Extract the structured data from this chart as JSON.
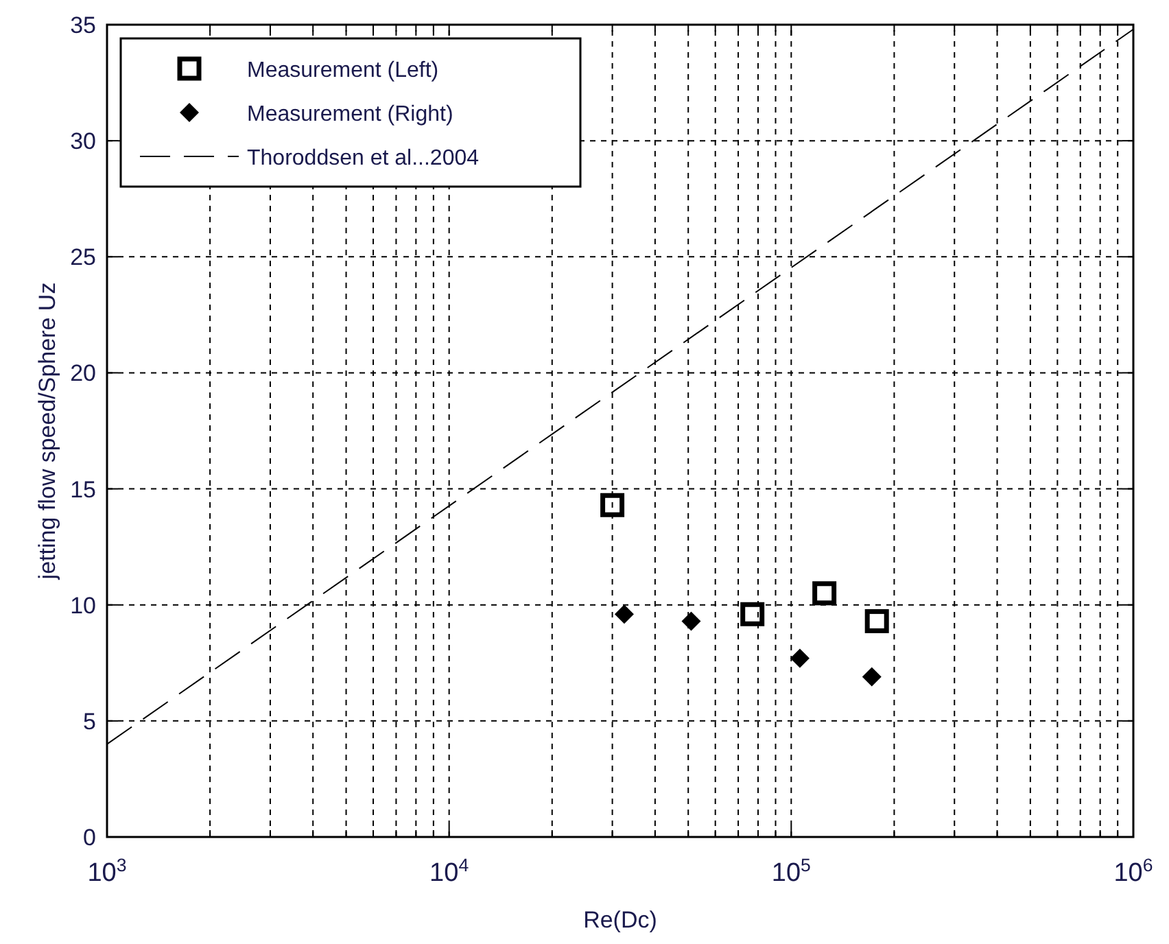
{
  "chart_data": {
    "type": "scatter",
    "xlabel": "Re(Dc)",
    "ylabel": "jetting flow speed/Sphere Uz",
    "log": "x",
    "grid": true,
    "legend": "top left",
    "xlim": [
      1000,
      1000000
    ],
    "ylim": [
      0,
      35
    ],
    "xticks": [
      {
        "value": 1000,
        "label": "10$^{3}$"
      },
      {
        "value": 2000,
        "label": null
      },
      {
        "value": 3000,
        "label": null
      },
      {
        "value": 4000,
        "label": null
      },
      {
        "value": 5000,
        "label": null
      },
      {
        "value": 6000,
        "label": null
      },
      {
        "value": 7000,
        "label": null
      },
      {
        "value": 8000,
        "label": null
      },
      {
        "value": 9000,
        "label": null
      },
      {
        "value": 10000,
        "label": "10$^{4}$"
      },
      {
        "value": 20000,
        "label": null
      },
      {
        "value": 30000,
        "label": null
      },
      {
        "value": 40000,
        "label": null
      },
      {
        "value": 50000,
        "label": null
      },
      {
        "value": 60000,
        "label": null
      },
      {
        "value": 70000,
        "label": null
      },
      {
        "value": 80000,
        "label": null
      },
      {
        "value": 90000,
        "label": null
      },
      {
        "value": 100000,
        "label": "10$^{5}$"
      },
      {
        "value": 200000,
        "label": null
      },
      {
        "value": 300000,
        "label": null
      },
      {
        "value": 400000,
        "label": null
      },
      {
        "value": 500000,
        "label": null
      },
      {
        "value": 600000,
        "label": null
      },
      {
        "value": 700000,
        "label": null
      },
      {
        "value": 800000,
        "label": null
      },
      {
        "value": 900000,
        "label": null
      },
      {
        "value": 1000000,
        "label": "10$^{6}$"
      }
    ],
    "yticks": [
      0,
      5,
      10,
      15,
      20,
      25,
      30,
      35
    ],
    "series": [
      {
        "name": "Measurement (Left)",
        "marker": "square",
        "color": "#000000",
        "x": [
          30000,
          77000,
          125000,
          178000
        ],
        "values": [
          14.3,
          9.6,
          10.5,
          9.3
        ]
      },
      {
        "name": "Measurement (Right)",
        "marker": "diamond",
        "color": "#000000",
        "x": [
          32500,
          51000,
          106000,
          172000
        ],
        "values": [
          9.6,
          9.3,
          7.7,
          6.9
        ]
      },
      {
        "name": "Thoroddsen et al...2004",
        "type": "line",
        "line_style": "dashed",
        "color": "#000000",
        "x": [
          1000,
          1000000
        ],
        "values": [
          4.0,
          34.8
        ]
      }
    ]
  }
}
